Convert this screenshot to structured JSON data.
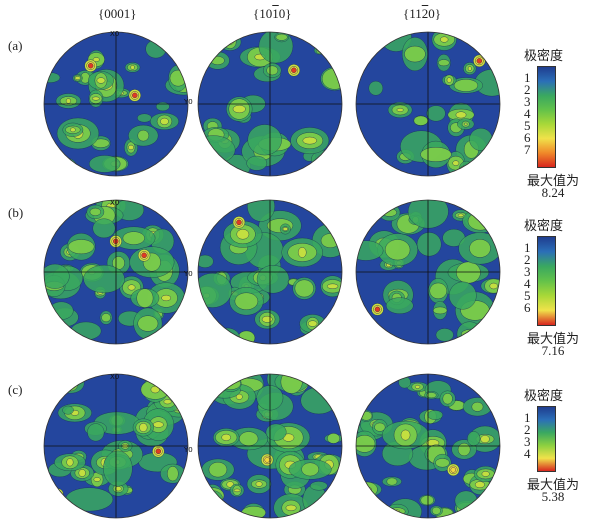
{
  "headers": [
    "{0001}",
    "{10Ī0}",
    "{11Ġ0}"
  ],
  "headers_display": [
    "{0001}",
    "{10¯10}",
    "{11¯20}"
  ],
  "rows": [
    {
      "label": "(a)",
      "legend_title": "极密度",
      "ticks": [
        "1",
        "2",
        "3",
        "4",
        "5",
        "6",
        "7"
      ],
      "max_label": "最大值为",
      "max_value": "8.24",
      "colors": [
        "#1f3d8f",
        "#2b6fb8",
        "#3aa860",
        "#63c24a",
        "#a8d838",
        "#f0e24a",
        "#f08a2a",
        "#d8261e"
      ]
    },
    {
      "label": "(b)",
      "legend_title": "极密度",
      "ticks": [
        "1",
        "2",
        "3",
        "4",
        "5",
        "6"
      ],
      "max_label": "最大值为",
      "max_value": "7.16",
      "colors": [
        "#1f3d8f",
        "#2b6fb8",
        "#3aa860",
        "#63c24a",
        "#a8d838",
        "#f0e24a",
        "#d8261e"
      ]
    },
    {
      "label": "(c)",
      "legend_title": "极密度",
      "ticks": [
        "1",
        "2",
        "3",
        "4"
      ],
      "max_label": "最大值为",
      "max_value": "5.38",
      "colors": [
        "#1f3d8f",
        "#2b6fb8",
        "#3aa860",
        "#8cd040",
        "#f0e24a",
        "#d8261e"
      ]
    }
  ],
  "axis_labels": {
    "x": "X0",
    "y": "Y0"
  }
}
